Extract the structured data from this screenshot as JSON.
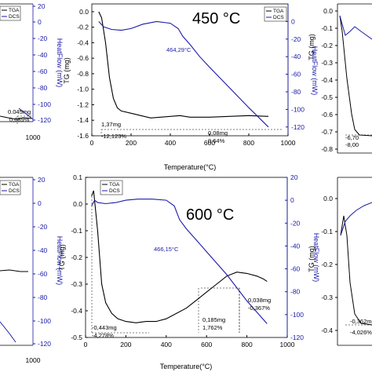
{
  "chart_data": [
    {
      "panel": "top-left",
      "type": "line",
      "legend": [
        "TGA",
        "DCS"
      ],
      "x_tick_labels": [
        "1000"
      ],
      "y2_tick_labels": [
        "20",
        "0",
        "-20",
        "-40",
        "-60",
        "-80",
        "-100",
        "-120"
      ],
      "y2_label": "HeatFlow (mW)",
      "annotations": [
        "0.045mg",
        "0,689%"
      ]
    },
    {
      "panel": "top-center",
      "type": "line",
      "title": "450 °C",
      "xlabel": "Temperature(°C)",
      "ylabel": "TG (mg)",
      "y2label": "HeatFlow (mW)",
      "xlim": [
        0,
        1000
      ],
      "ylim": [
        -1.6,
        0.1
      ],
      "y2lim": [
        -130,
        20
      ],
      "x_ticks": [
        0,
        200,
        400,
        600,
        800,
        1000
      ],
      "y_ticks": [
        0.0,
        -0.2,
        -0.4,
        -0.6,
        -0.8,
        -1.0,
        -1.2,
        -1.4,
        -1.6
      ],
      "y2_ticks": [
        0,
        -20,
        -40,
        -60,
        -80,
        -100,
        -120
      ],
      "legend": [
        "TGA",
        "DCS"
      ],
      "series": [
        {
          "name": "TGA",
          "color": "#000000",
          "axis": "left",
          "x": [
            35,
            50,
            70,
            90,
            110,
            130,
            150,
            200,
            250,
            300,
            350,
            400,
            450,
            500,
            600,
            700,
            800,
            900
          ],
          "y": [
            0.0,
            -0.08,
            -0.4,
            -0.85,
            -1.12,
            -1.24,
            -1.28,
            -1.31,
            -1.34,
            -1.37,
            -1.36,
            -1.35,
            -1.34,
            -1.36,
            -1.36,
            -1.35,
            -1.34,
            -1.35
          ]
        },
        {
          "name": "DCS",
          "color": "#1a1aa8",
          "axis": "right",
          "x": [
            35,
            60,
            100,
            150,
            200,
            260,
            330,
            400,
            440,
            464,
            500,
            550,
            600,
            700,
            800,
            900
          ],
          "y": [
            0,
            -6,
            -9,
            -10,
            -8,
            -3,
            0,
            -2,
            -8,
            -17,
            -26,
            -40,
            -52,
            -75,
            -98,
            -120
          ]
        }
      ],
      "annotations": [
        "1,37mg",
        "-12,123%",
        "0,08mg",
        "0,64%",
        "464,29°C"
      ]
    },
    {
      "panel": "top-right",
      "type": "line",
      "ylabel": "TG (mg)",
      "y_tick_labels": [
        "0.0",
        "-0.1",
        "-0.2",
        "-0.3",
        "-0.4",
        "-0.5",
        "-0.6",
        "-0.7",
        "-0.8"
      ],
      "annotations": [
        "-6,70",
        "-8,00"
      ]
    },
    {
      "panel": "bottom-left",
      "type": "line",
      "legend": [
        "TGA",
        "DCS"
      ],
      "x_tick_labels": [
        "1000"
      ],
      "y2_tick_labels": [
        "20",
        "0",
        "-20",
        "-40",
        "-60",
        "-80",
        "-100",
        "-120"
      ],
      "y2_label": "HeatFlow (mW)"
    },
    {
      "panel": "bottom-center",
      "type": "line",
      "title": "600 °C",
      "xlabel": "Temperature(°C)",
      "ylabel": "TG (mg)",
      "y2label": "HeatFlow (mW)",
      "xlim": [
        0,
        1000
      ],
      "ylim": [
        -0.5,
        0.1
      ],
      "y2lim": [
        -120,
        20
      ],
      "x_ticks": [
        0,
        200,
        400,
        600,
        800,
        1000
      ],
      "y_ticks": [
        0.1,
        0.0,
        -0.1,
        -0.2,
        -0.3,
        -0.4,
        -0.5
      ],
      "y2_ticks": [
        20,
        0,
        -20,
        -40,
        -60,
        -80,
        -100,
        -120
      ],
      "legend": [
        "TGA",
        "DCS"
      ],
      "series": [
        {
          "name": "TGA",
          "color": "#000000",
          "axis": "left",
          "x": [
            30,
            40,
            60,
            80,
            100,
            130,
            160,
            200,
            250,
            300,
            350,
            400,
            450,
            500,
            550,
            600,
            650,
            700,
            750,
            800,
            850,
            880,
            900
          ],
          "y": [
            0.03,
            0.05,
            -0.1,
            -0.3,
            -0.37,
            -0.41,
            -0.43,
            -0.44,
            -0.445,
            -0.44,
            -0.44,
            -0.43,
            -0.41,
            -0.39,
            -0.36,
            -0.33,
            -0.3,
            -0.27,
            -0.255,
            -0.26,
            -0.27,
            -0.28,
            -0.29
          ]
        },
        {
          "name": "DCS",
          "color": "#1a1aa8",
          "axis": "right",
          "x": [
            30,
            45,
            60,
            100,
            150,
            200,
            260,
            330,
            400,
            440,
            466,
            500,
            550,
            600,
            700,
            800,
            900
          ],
          "y": [
            -5,
            0,
            -2,
            -3,
            -2,
            0,
            1,
            1,
            0,
            -5,
            -17,
            -25,
            -35,
            -45,
            -65,
            -88,
            -108
          ]
        }
      ],
      "annotations": [
        "-0,443mg",
        "-4,278%",
        "0,185mg",
        "1,762%",
        "0,038mg",
        "-0,367%",
        "466,15°C"
      ]
    },
    {
      "panel": "bottom-right",
      "type": "line",
      "ylabel": "TG (mg)",
      "y_tick_labels": [
        "0.0",
        "-0.1",
        "-0.2",
        "-0.3",
        "-0.4"
      ],
      "annotations": [
        "-0,362mg",
        "-4,026%"
      ]
    }
  ],
  "colors": {
    "tga": "#000000",
    "dcs": "#1a1aa8",
    "grid": "#000000"
  }
}
